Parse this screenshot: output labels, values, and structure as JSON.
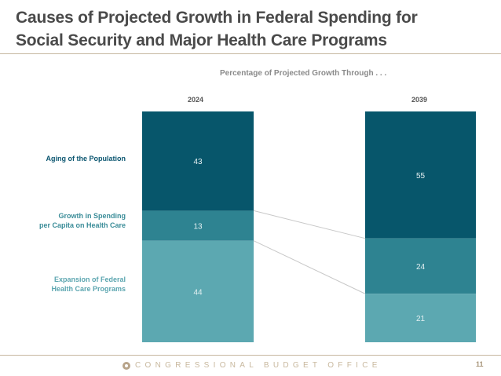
{
  "slide": {
    "title_line1": "Causes of Projected Growth in Federal Spending for",
    "title_line2": "Social Security and Major Health Care Programs",
    "footer_org": "CONGRESSIONAL BUDGET OFFICE",
    "page_number": "11"
  },
  "chart_data": {
    "type": "bar",
    "stacked": true,
    "title": "Percentage of Projected Growth Through . . .",
    "xlabel": "",
    "ylabel": "",
    "ylim": [
      0,
      100
    ],
    "grid": false,
    "categories": [
      "2024",
      "2039"
    ],
    "series": [
      {
        "name": "Aging of the Population",
        "label_lines": [
          "Aging of the Population"
        ],
        "color": "#07566b",
        "label_color": "#0b5670",
        "values": [
          43,
          55
        ]
      },
      {
        "name": "Growth in Spending per Capita on Health Care",
        "label_lines": [
          "Growth in Spending",
          "per Capita on Health Care"
        ],
        "color": "#2e8391",
        "label_color": "#3a8c98",
        "values": [
          13,
          24
        ]
      },
      {
        "name": "Expansion of Federal Health Care Programs",
        "label_lines": [
          "Expansion of Federal",
          "Health Care Programs"
        ],
        "color": "#5ca8b1",
        "label_color": "#5ca6b0",
        "values": [
          44,
          21
        ]
      }
    ],
    "value_label_color": "#e4f0f2",
    "connector_color": "#c8c8c8"
  }
}
